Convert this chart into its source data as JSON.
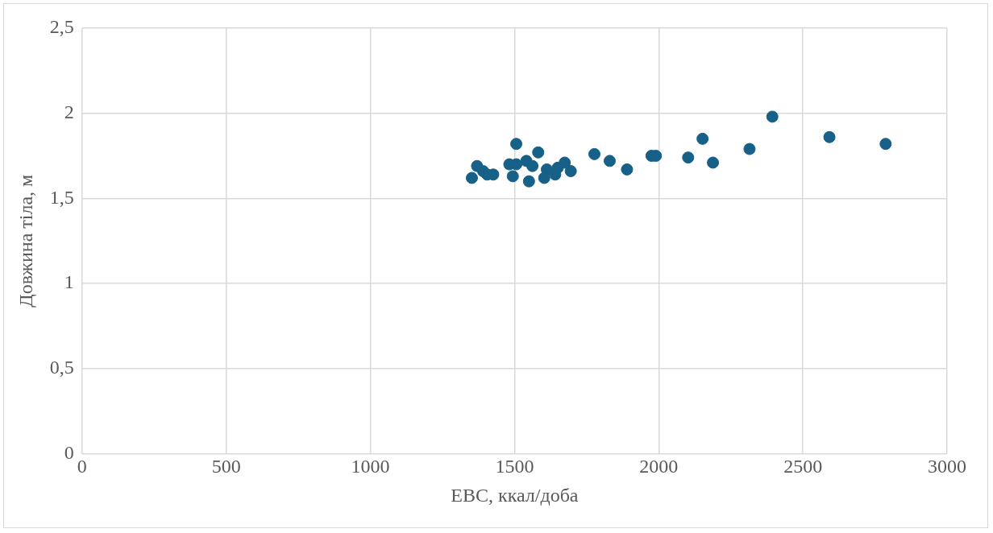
{
  "chart_data": {
    "type": "scatter",
    "xlabel": "ЕВС, ккал/доба",
    "ylabel": "Довжина тіла, м",
    "x": [
      1352,
      1370,
      1391,
      1405,
      1426,
      1482,
      1494,
      1506,
      1506,
      1541,
      1550,
      1562,
      1582,
      1603,
      1612,
      1641,
      1650,
      1674,
      1695,
      1777,
      1830,
      1890,
      1975,
      1990,
      2102,
      2152,
      2188,
      2315,
      2394,
      2592,
      2787
    ],
    "series": [
      {
        "color": "#176087",
        "values": [
          1.62,
          1.69,
          1.66,
          1.64,
          1.64,
          1.7,
          1.63,
          1.82,
          1.7,
          1.72,
          1.6,
          1.69,
          1.77,
          1.62,
          1.67,
          1.64,
          1.68,
          1.71,
          1.66,
          1.76,
          1.72,
          1.67,
          1.75,
          1.75,
          1.74,
          1.85,
          1.71,
          1.79,
          1.98,
          1.86,
          1.82
        ]
      }
    ],
    "xlim": [
      0,
      3000
    ],
    "xticks": [
      0,
      500,
      1000,
      1500,
      2000,
      2500,
      3000
    ],
    "ylim": [
      0,
      2.5
    ],
    "yticks": [
      {
        "value": 0,
        "label": "0"
      },
      {
        "value": 0.5,
        "label": "0,5"
      },
      {
        "value": 1,
        "label": "1"
      },
      {
        "value": 1.5,
        "label": "1,5"
      },
      {
        "value": 2,
        "label": "2"
      },
      {
        "value": 2.5,
        "label": "2,5"
      }
    ],
    "grid": true,
    "marker": "circle",
    "legend": false
  }
}
